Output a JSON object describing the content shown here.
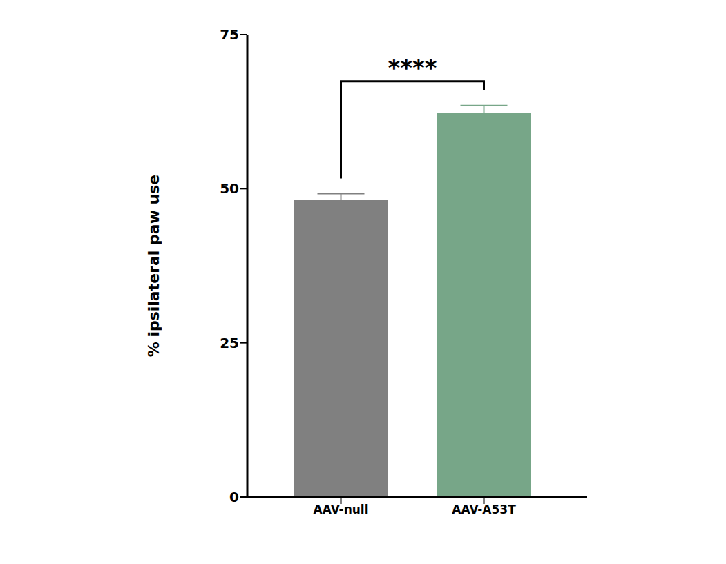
{
  "chart_data": {
    "type": "bar",
    "categories": [
      "AAV-null",
      "AAV-A53T"
    ],
    "values": [
      48.2,
      62.3
    ],
    "errors": [
      1.0,
      1.2
    ],
    "colors": [
      "#808080",
      "#77a688"
    ],
    "y_label": "% ipsilateral paw use",
    "ylim": [
      0,
      75
    ],
    "yticks": [
      0,
      25,
      50,
      75
    ],
    "annotation": "****"
  }
}
